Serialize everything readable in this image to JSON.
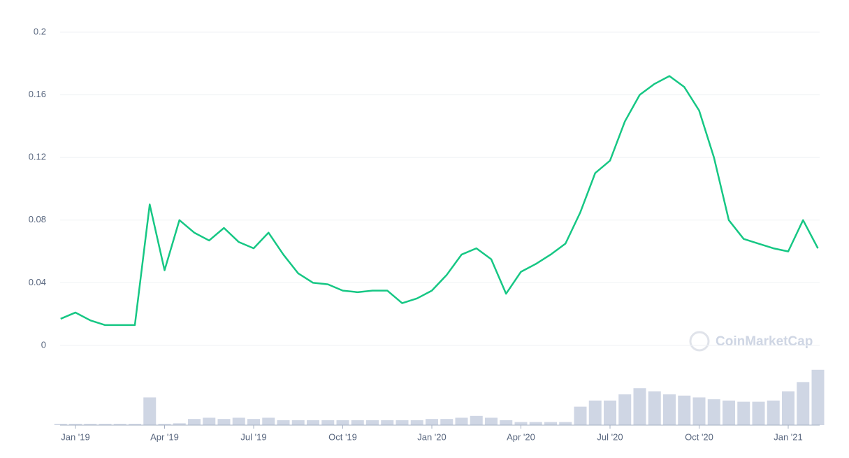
{
  "chart_data": {
    "type": "line",
    "watermark": "CoinMarketCap",
    "categories": [
      null,
      "Jan '19",
      null,
      null,
      null,
      null,
      null,
      "Apr '19",
      null,
      null,
      null,
      null,
      null,
      "Jul '19",
      null,
      null,
      null,
      null,
      null,
      "Oct '19",
      null,
      null,
      null,
      null,
      null,
      "Jan '20",
      null,
      null,
      null,
      null,
      null,
      "Apr '20",
      null,
      null,
      null,
      null,
      null,
      "Jul '20",
      null,
      null,
      null,
      null,
      null,
      "Oct '20",
      null,
      null,
      null,
      null,
      null,
      "Jan '21",
      null,
      null
    ],
    "values": [
      0.017,
      0.021,
      0.016,
      0.013,
      0.013,
      0.013,
      0.09,
      0.048,
      0.08,
      0.072,
      0.067,
      0.075,
      0.066,
      0.062,
      0.072,
      0.058,
      0.046,
      0.04,
      0.039,
      0.035,
      0.034,
      0.035,
      0.035,
      0.027,
      0.03,
      0.035,
      0.045,
      0.058,
      0.062,
      0.055,
      0.033,
      0.047,
      0.052,
      0.058,
      0.065,
      0.085,
      0.11,
      0.118,
      0.143,
      0.16,
      0.167,
      0.172,
      0.165,
      0.15,
      0.12,
      0.08,
      0.068,
      0.065,
      0.062,
      0.06,
      0.08,
      0.062
    ],
    "color": "#16c784",
    "ylim": [
      0,
      0.2
    ],
    "yticks": [
      0,
      0.04,
      0.08,
      0.12,
      0.16,
      0.2
    ],
    "grid": true,
    "volume": [
      2,
      2,
      2,
      2,
      2,
      2,
      45,
      2,
      3,
      10,
      12,
      10,
      12,
      10,
      12,
      8,
      8,
      8,
      8,
      8,
      8,
      8,
      8,
      8,
      8,
      10,
      10,
      12,
      15,
      12,
      8,
      5,
      5,
      5,
      5,
      30,
      40,
      40,
      50,
      60,
      55,
      50,
      48,
      45,
      42,
      40,
      38,
      38,
      40,
      55,
      70,
      90
    ],
    "volume_color": "#cfd6e4",
    "y2lim": [
      0,
      100
    ]
  }
}
